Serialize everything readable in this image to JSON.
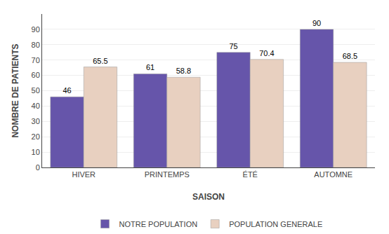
{
  "chart_data": {
    "type": "bar",
    "xlabel": "SAISON",
    "ylabel": "NOMBRE DE PATIENTS",
    "categories": [
      "HIVER",
      "PRINTEMPS",
      "ÉTÉ",
      "AUTOMNE"
    ],
    "series": [
      {
        "name": "NOTRE POPULATION",
        "color": "#6655aa",
        "values": [
          46,
          61,
          75,
          90
        ]
      },
      {
        "name": "POPULATION GENERALE",
        "color": "#e8d0c0",
        "values": [
          65.5,
          58.8,
          70.4,
          68.5
        ]
      }
    ],
    "ylim": [
      0,
      100
    ],
    "yticks": [
      0,
      10,
      20,
      30,
      40,
      50,
      60,
      70,
      80,
      90
    ],
    "grid": true,
    "legend": "bottom",
    "data_labels": true
  }
}
